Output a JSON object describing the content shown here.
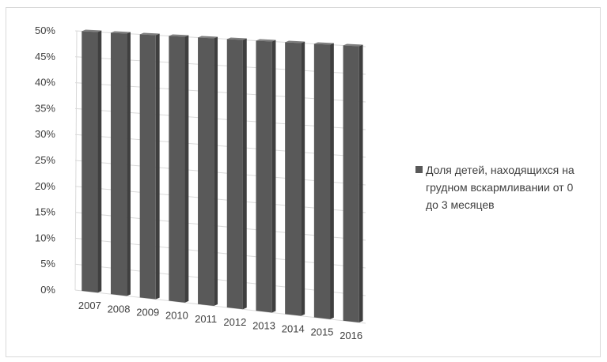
{
  "chart_data": {
    "type": "bar",
    "title": "",
    "xlabel": "",
    "ylabel": "",
    "categories": [
      "2007",
      "2008",
      "2009",
      "2010",
      "2011",
      "2012",
      "2013",
      "2014",
      "2015",
      "2016"
    ],
    "series": [
      {
        "name": "Доля детей, находящихся на грудном вскармливании от 0 до 3 месяцев",
        "values": [
          50,
          50,
          50,
          50,
          50,
          50,
          50,
          50,
          50,
          50
        ],
        "color": "#595959"
      }
    ],
    "ylim": [
      0,
      50
    ],
    "y_ticks": [
      "0%",
      "5%",
      "10%",
      "15%",
      "20%",
      "25%",
      "30%",
      "35%",
      "40%",
      "45%",
      "50%"
    ],
    "grid": true,
    "legend_position": "right",
    "legend_lines": [
      "Доля детей, находящихся на",
      "грудном вскармливании от 0",
      "до 3 месяцев"
    ],
    "colors": {
      "bar_front": "#595959",
      "bar_side": "#3f3f3f",
      "bar_top": "#7f7f7f",
      "grid": "#d9d9d9",
      "text": "#404040"
    }
  }
}
